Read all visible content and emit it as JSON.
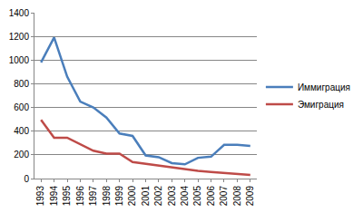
{
  "chart_data": {
    "type": "line",
    "categories": [
      "1993",
      "1994",
      "1995",
      "1996",
      "1997",
      "1998",
      "1999",
      "2000",
      "2001",
      "2002",
      "2003",
      "2004",
      "2005",
      "2006",
      "2007",
      "2008",
      "2009"
    ],
    "series": [
      {
        "name": "Иммиграция",
        "color": "#4a7ebb",
        "values": [
          980,
          1190,
          860,
          650,
          600,
          515,
          380,
          360,
          195,
          180,
          130,
          120,
          175,
          185,
          285,
          285,
          275
        ]
      },
      {
        "name": "Эмиграция",
        "color": "#be4b48",
        "values": [
          495,
          345,
          345,
          290,
          235,
          210,
          210,
          140,
          125,
          105,
          90,
          75,
          65,
          55,
          45,
          40,
          30
        ]
      }
    ],
    "ylim": [
      0,
      1400
    ],
    "yticks": [
      0,
      200,
      400,
      600,
      800,
      1000,
      1200,
      1400
    ],
    "grid": true,
    "legend": "right"
  }
}
